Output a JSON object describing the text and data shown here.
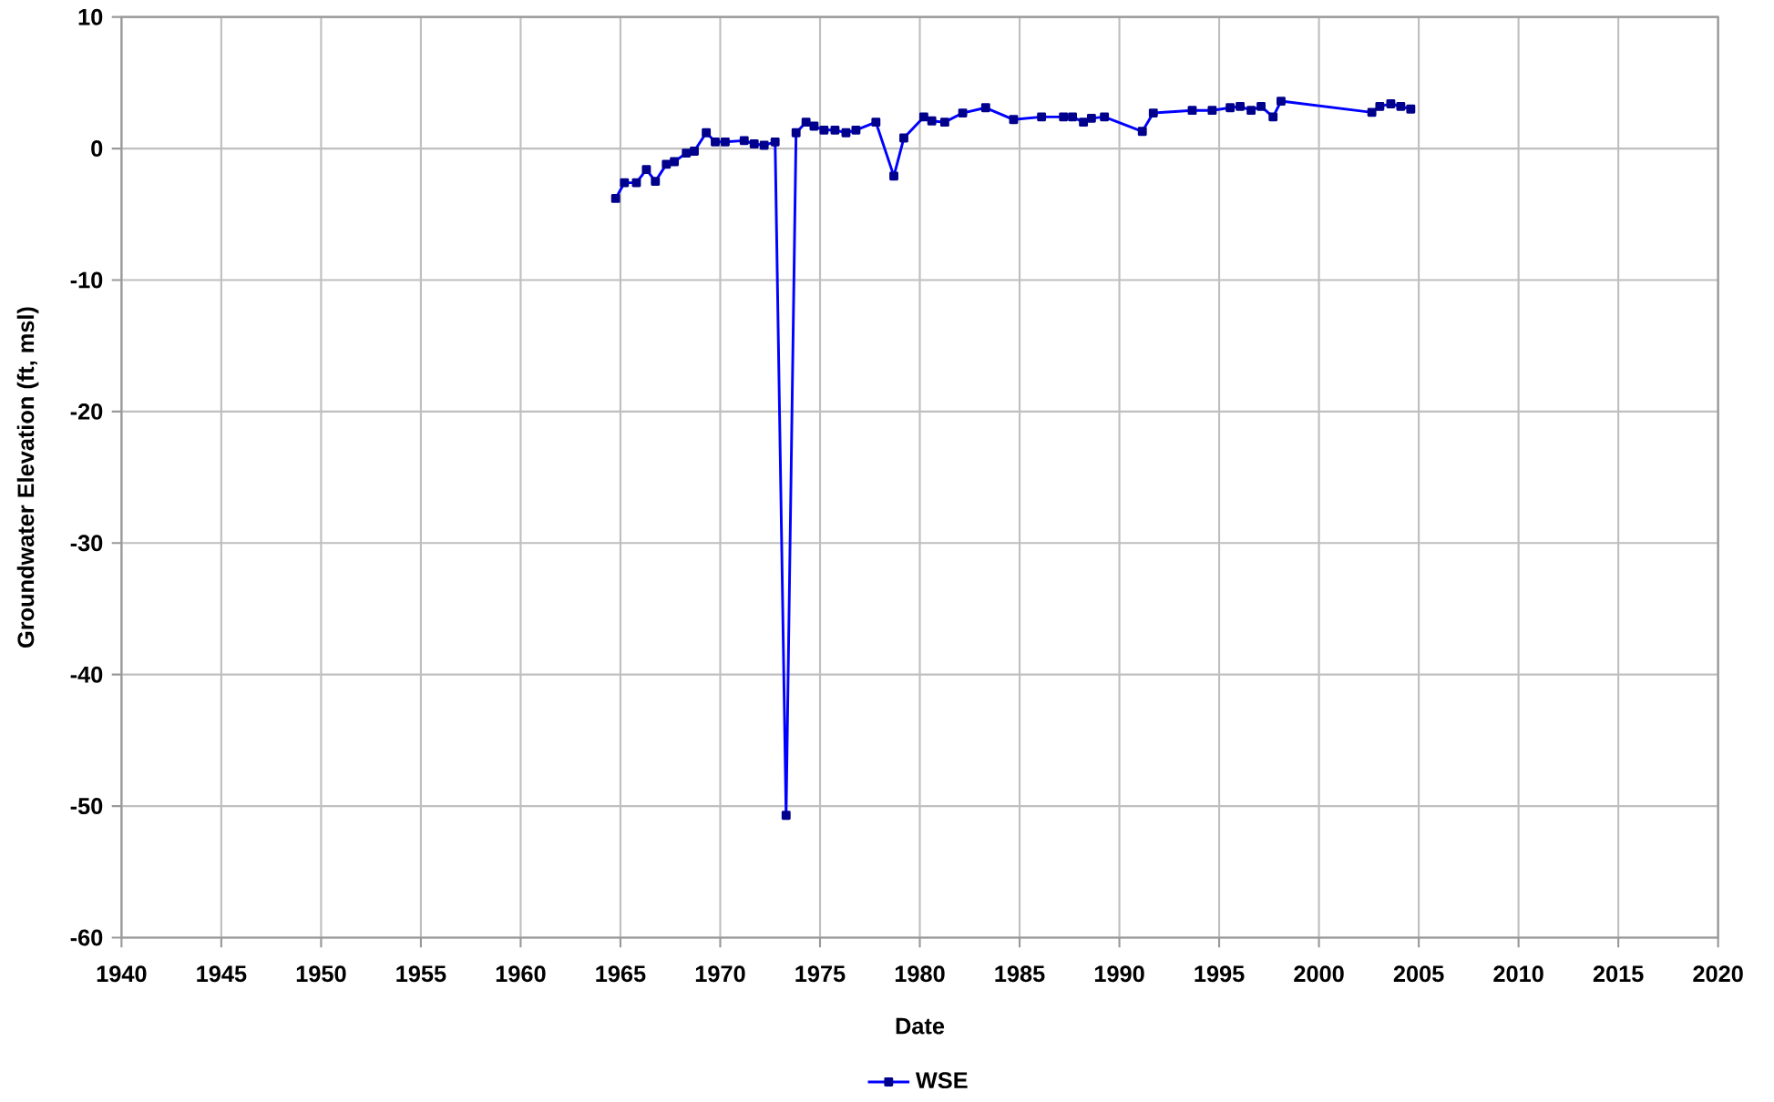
{
  "chart_data": {
    "type": "line",
    "xlabel": "Date",
    "ylabel": "Groundwater Elevation (ft, msl)",
    "x": [
      1964.76,
      1965.2,
      1965.8,
      1966.3,
      1966.75,
      1967.3,
      1967.7,
      1968.3,
      1968.7,
      1969.3,
      1969.75,
      1970.25,
      1971.2,
      1971.7,
      1972.2,
      1972.75,
      1973.3,
      1973.8,
      1974.3,
      1974.7,
      1975.2,
      1975.75,
      1976.3,
      1976.8,
      1977.8,
      1978.7,
      1979.2,
      1980.2,
      1980.6,
      1981.25,
      1982.15,
      1983.3,
      1984.7,
      1986.1,
      1987.2,
      1987.65,
      1988.2,
      1988.6,
      1989.25,
      1991.15,
      1991.7,
      1993.65,
      1994.65,
      1995.55,
      1996.05,
      1996.6,
      1997.1,
      1997.7,
      1998.1,
      2002.65,
      2003.05,
      2003.6,
      2004.1,
      2004.6
    ],
    "series": [
      {
        "name": "WSE",
        "color": "#0000ff",
        "values": [
          -3.8,
          -2.6,
          -2.6,
          -1.6,
          -2.5,
          -1.2,
          -1.0,
          -0.35,
          -0.2,
          1.2,
          0.5,
          0.5,
          0.6,
          0.35,
          0.25,
          0.5,
          -50.7,
          1.2,
          2.0,
          1.7,
          1.4,
          1.4,
          1.2,
          1.4,
          2.0,
          -2.1,
          0.8,
          2.4,
          2.1,
          2.0,
          2.7,
          3.1,
          2.2,
          2.4,
          2.4,
          2.4,
          2.0,
          2.3,
          2.4,
          1.3,
          2.7,
          2.9,
          2.9,
          3.1,
          3.2,
          2.9,
          3.2,
          2.4,
          3.6,
          2.75,
          3.2,
          3.4,
          3.2,
          3.0
        ]
      }
    ],
    "xlim": [
      1940,
      2020
    ],
    "xticks": [
      1940,
      1945,
      1950,
      1955,
      1960,
      1965,
      1970,
      1975,
      1980,
      1985,
      1990,
      1995,
      2000,
      2005,
      2010,
      2015,
      2020
    ],
    "ylim": [
      -60,
      10
    ],
    "yticks": [
      -60,
      -50,
      -40,
      -30,
      -20,
      -10,
      0,
      10
    ],
    "grid": true,
    "legend": "bottom",
    "marker": "square",
    "line_style": "solid"
  }
}
